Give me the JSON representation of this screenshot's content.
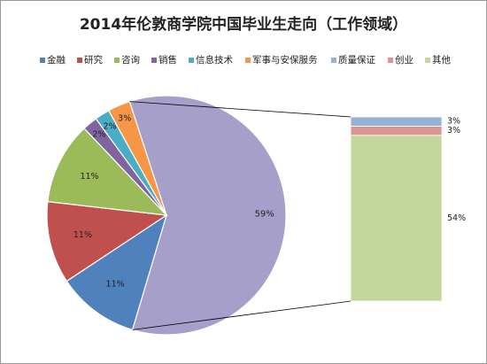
{
  "chart_data": {
    "type": "bar-of-pie",
    "title": "2014年伦敦商学院中国毕业生走向（工作领域）",
    "categories": [
      "金融",
      "研究",
      "咨询",
      "销售",
      "信息技术",
      "军事与安保服务",
      "质量保证",
      "创业",
      "其他"
    ],
    "colors": [
      "#4f81bd",
      "#c0504d",
      "#9bbb59",
      "#8064a2",
      "#4bacc6",
      "#f79646",
      "#95b3d7",
      "#d99694",
      "#c3d69b"
    ],
    "values": [
      11,
      11,
      11,
      2,
      2,
      3,
      3,
      3,
      54
    ],
    "value_labels": [
      "11%",
      "11%",
      "11%",
      "2%",
      "2%",
      "3%",
      "3%",
      "3%",
      "54%"
    ],
    "second_plot_values": 3,
    "other": {
      "value": 59,
      "label": "59%",
      "color": "#a69fc9"
    },
    "legend": "top"
  }
}
